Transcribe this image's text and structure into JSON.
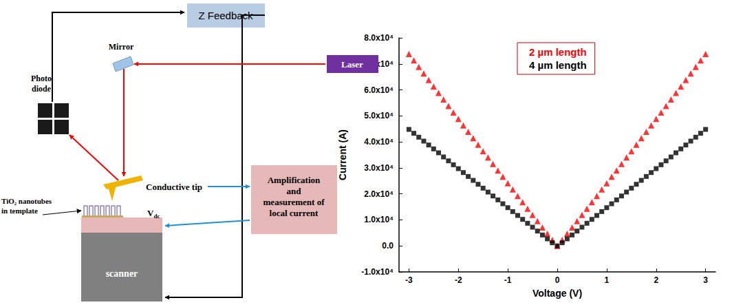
{
  "diagram": {
    "z_feedback": "Z Feedback",
    "laser": "Laser",
    "mirror": "Mirror",
    "photodiode": [
      "Photo",
      "diode"
    ],
    "conductive_tip": "Conductive tip",
    "sample": [
      "TiO₂ nanotubes",
      "in template"
    ],
    "bias": {
      "text": "V",
      "subscript": "dc"
    },
    "amplifier": [
      "Amplification",
      "and",
      "measurement of",
      "local current"
    ],
    "scanner": "scanner"
  },
  "chart_data": {
    "type": "scatter",
    "xlabel": "Voltage (V)",
    "ylabel": "Current (A)",
    "x": [
      -3.0,
      -2.9,
      -2.8,
      -2.7,
      -2.6,
      -2.5,
      -2.4,
      -2.3,
      -2.2,
      -2.1,
      -2.0,
      -1.9,
      -1.8,
      -1.7,
      -1.6,
      -1.5,
      -1.4,
      -1.3,
      -1.2,
      -1.1,
      -1.0,
      -0.9,
      -0.8,
      -0.7,
      -0.6,
      -0.5,
      -0.4,
      -0.3,
      -0.2,
      -0.1,
      0.0,
      0.1,
      0.2,
      0.3,
      0.4,
      0.5,
      0.6,
      0.7,
      0.8,
      0.9,
      1.0,
      1.1,
      1.2,
      1.3,
      1.4,
      1.5,
      1.6,
      1.7,
      1.8,
      1.9,
      2.0,
      2.1,
      2.2,
      2.3,
      2.4,
      2.5,
      2.6,
      2.7,
      2.8,
      2.9,
      3.0
    ],
    "series": [
      {
        "name": "2 µm length",
        "color": "#ff0000",
        "marker": "triangle",
        "values": [
          73800,
          71300,
          68800,
          66300,
          63800,
          61300,
          58800,
          56300,
          53800,
          51300,
          48800,
          46300,
          43900,
          41400,
          38900,
          36400,
          34000,
          31500,
          29000,
          26600,
          24100,
          21700,
          19200,
          16800,
          14300,
          11900,
          9500,
          7100,
          4700,
          2300,
          0,
          2300,
          4700,
          7100,
          9500,
          11900,
          14300,
          16800,
          19200,
          21700,
          24100,
          26600,
          29000,
          31500,
          34000,
          36400,
          38900,
          41400,
          43900,
          46300,
          48800,
          51300,
          53800,
          56300,
          58800,
          61300,
          63800,
          66300,
          68800,
          71300,
          73800
        ]
      },
      {
        "name": "4 µm length",
        "color": "#000000",
        "marker": "square",
        "values": [
          44800,
          43300,
          41800,
          40300,
          38800,
          37300,
          35800,
          34200,
          32700,
          31200,
          29700,
          28200,
          26700,
          25200,
          23700,
          22200,
          20700,
          19200,
          17700,
          16200,
          14700,
          13200,
          11700,
          10200,
          8700,
          7200,
          5700,
          4200,
          2700,
          1200,
          0,
          1200,
          2700,
          4200,
          5700,
          7200,
          8700,
          10200,
          11700,
          13200,
          14700,
          16200,
          17700,
          19200,
          20700,
          22200,
          23700,
          25200,
          26700,
          28200,
          29700,
          31200,
          32700,
          34200,
          35800,
          37300,
          38800,
          40300,
          41800,
          43300,
          44800
        ]
      }
    ],
    "xlim": [
      -3.2,
      3.2
    ],
    "xticks": [
      -3,
      -2,
      -1,
      0,
      1,
      2,
      3
    ],
    "ylim": [
      -10000,
      80000
    ],
    "yticks": [
      {
        "value": -10000,
        "label": "-1.0x10⁴"
      },
      {
        "value": 0,
        "label": "0.0"
      },
      {
        "value": 10000,
        "label": "1.0x10⁴"
      },
      {
        "value": 20000,
        "label": "2.0x10⁴"
      },
      {
        "value": 30000,
        "label": "3.0x10⁴"
      },
      {
        "value": 40000,
        "label": "4.0x10⁴"
      },
      {
        "value": 50000,
        "label": "5.0x10⁴"
      },
      {
        "value": 60000,
        "label": "6.0x10⁴"
      },
      {
        "value": 70000,
        "label": "7.0x10⁴"
      },
      {
        "value": 80000,
        "label": "8.0x10⁴"
      }
    ],
    "legend": "top",
    "grid": false
  }
}
